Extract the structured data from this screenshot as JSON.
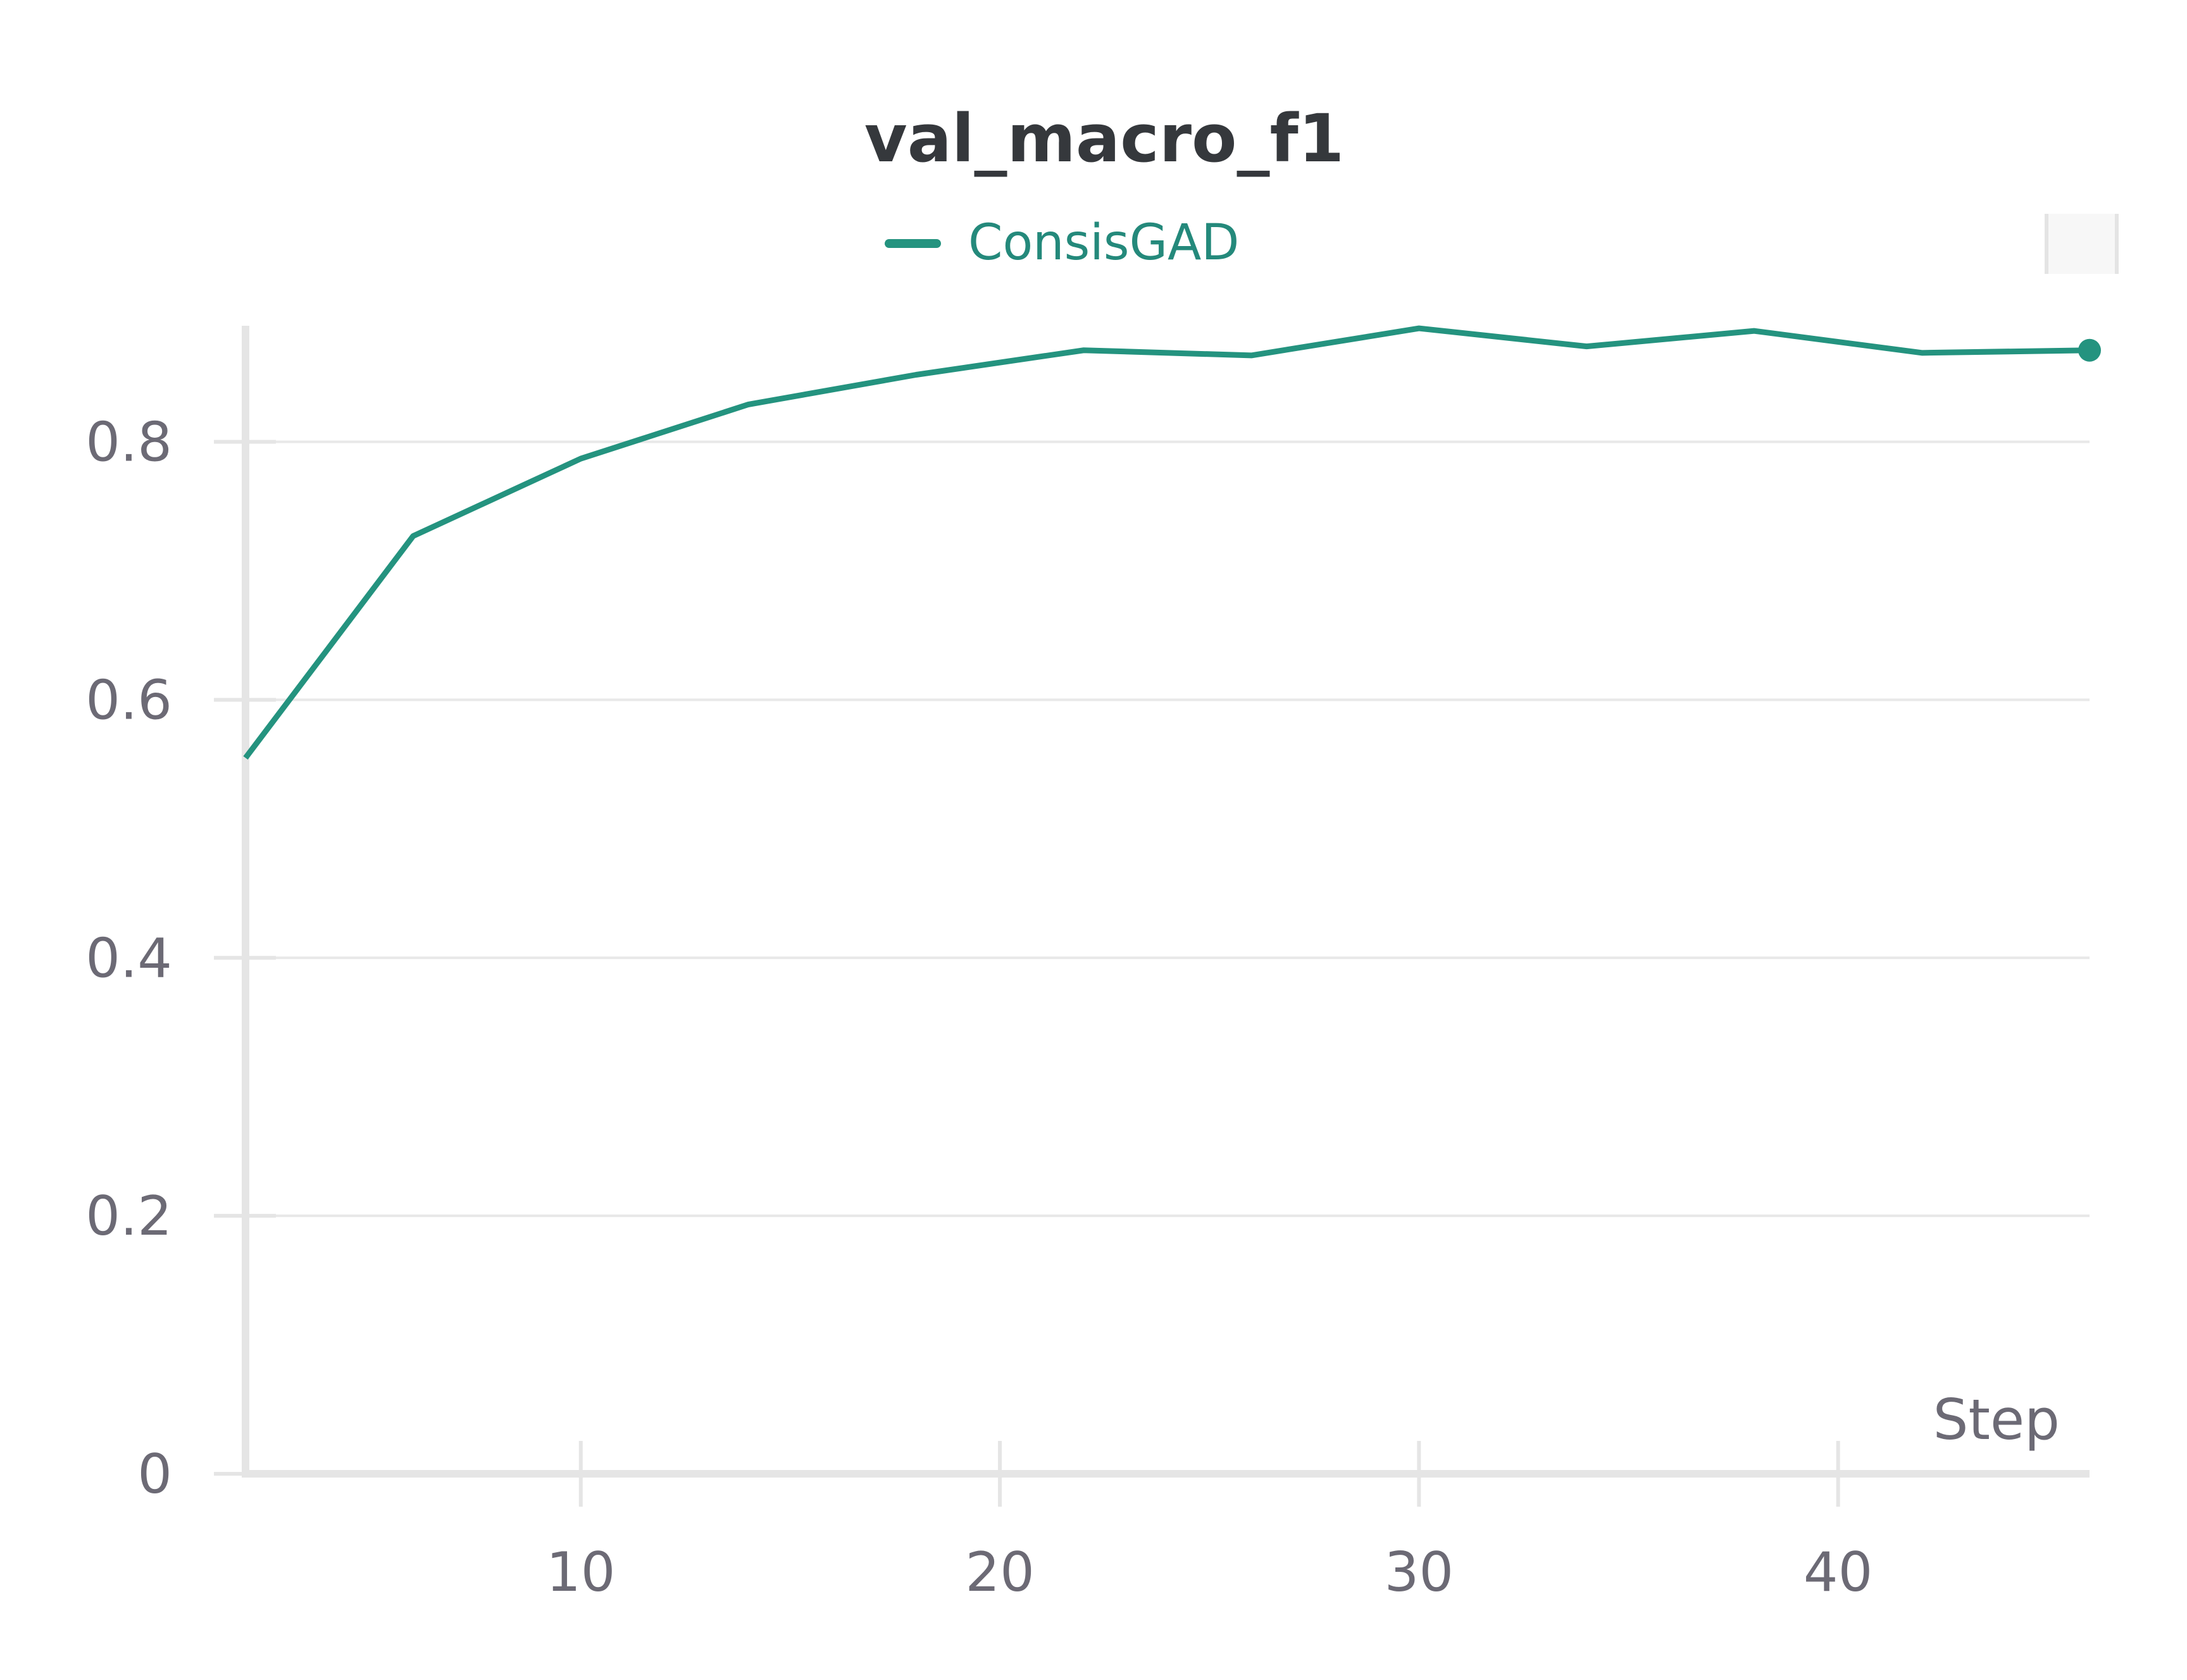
{
  "chart_data": {
    "type": "line",
    "title": "val_macro_f1",
    "xlabel": "Step",
    "ylabel": "",
    "xlim": [
      2,
      46
    ],
    "ylim": [
      0,
      0.89
    ],
    "x_ticks": [
      "10",
      "20",
      "30",
      "40"
    ],
    "y_ticks": [
      "0",
      "0.2",
      "0.4",
      "0.6",
      "0.8"
    ],
    "grid": true,
    "legend_position": "top-center",
    "series": [
      {
        "name": "ConsisGAD",
        "color": "#24937f",
        "x": [
          2,
          6,
          10,
          14,
          18,
          22,
          26,
          30,
          34,
          38,
          42,
          46
        ],
        "y": [
          0.555,
          0.727,
          0.787,
          0.829,
          0.852,
          0.871,
          0.867,
          0.888,
          0.874,
          0.886,
          0.869,
          0.871
        ]
      }
    ]
  }
}
